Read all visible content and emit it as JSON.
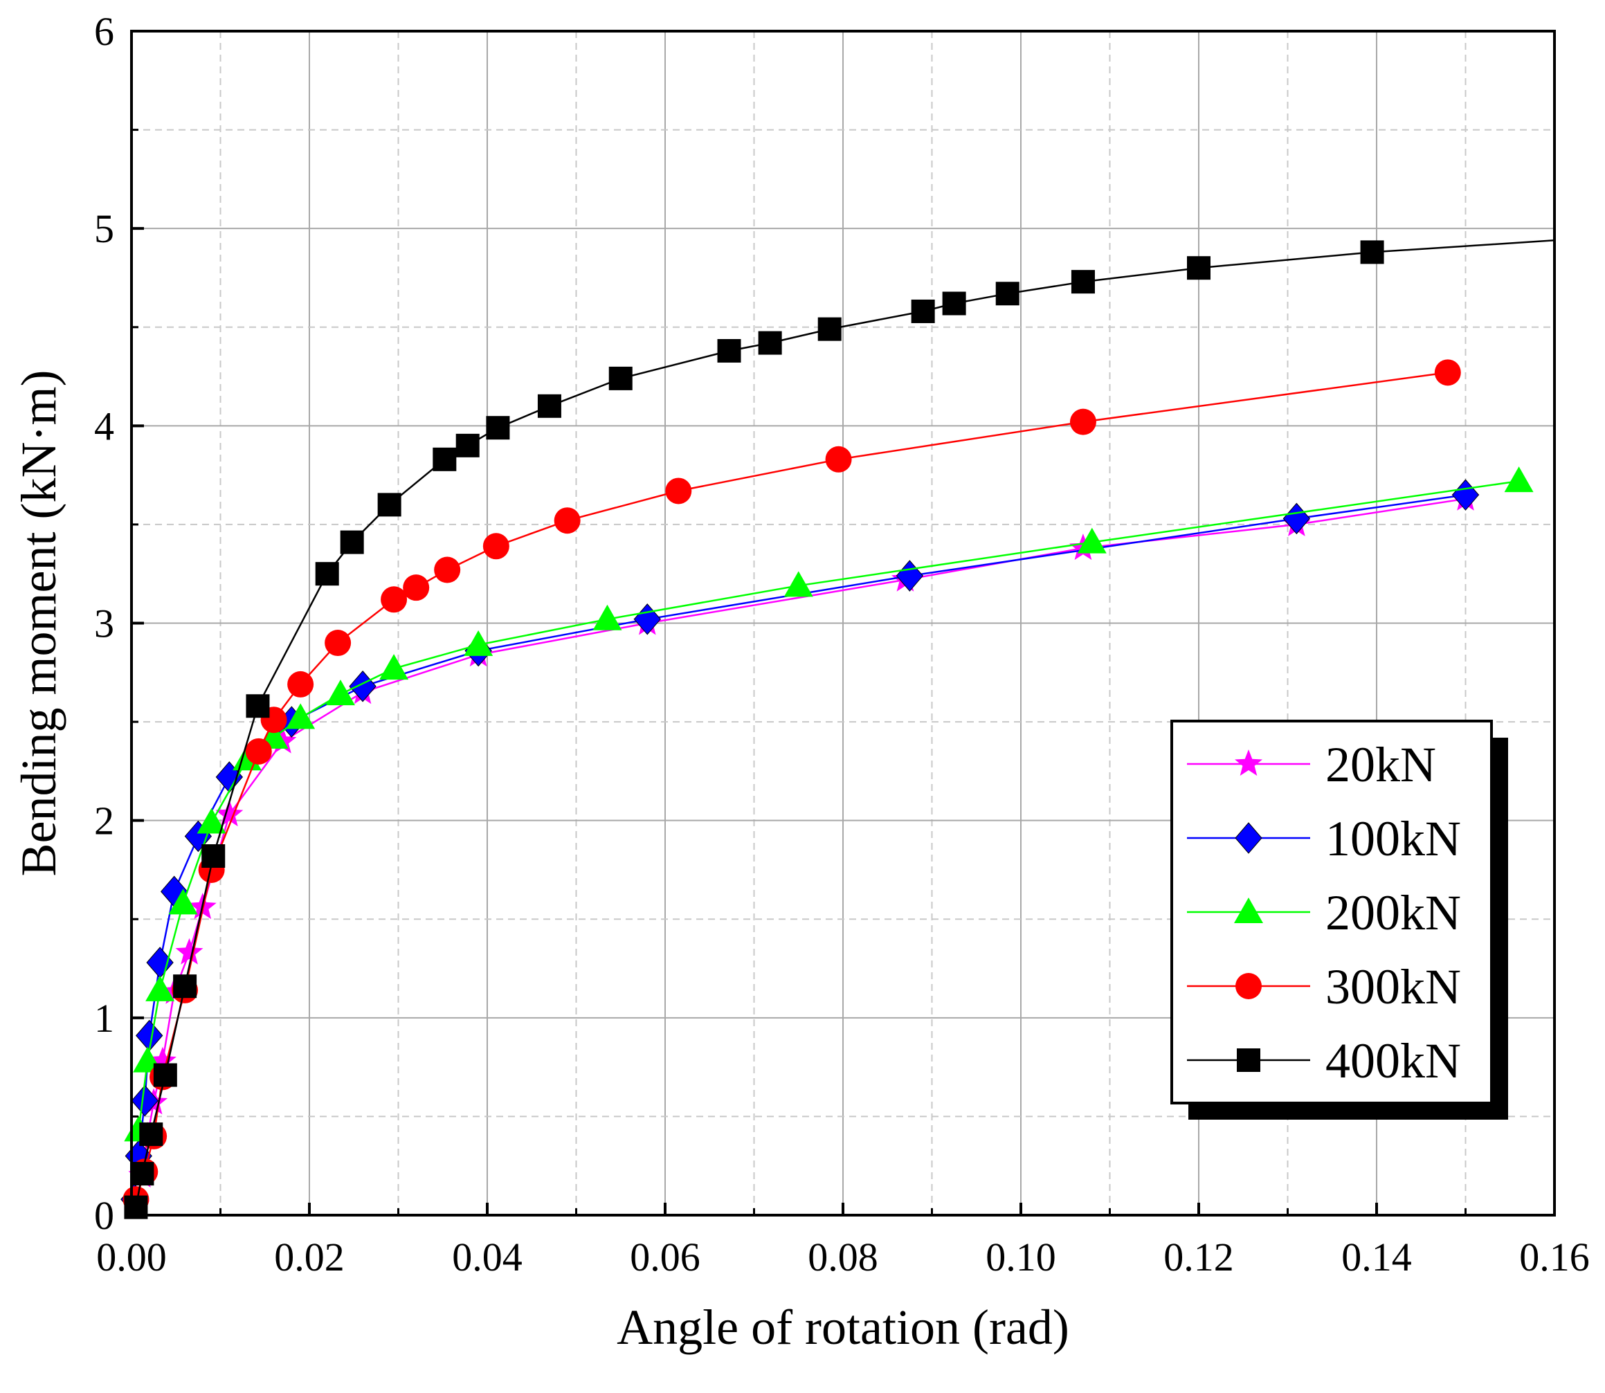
{
  "chart_data": {
    "type": "line",
    "title": "",
    "xlabel": "Angle of rotation (rad)",
    "ylabel": "Bending moment (kN·m)",
    "xlim": [
      0,
      0.16
    ],
    "ylim": [
      0,
      6
    ],
    "x_ticks": [
      "0.00",
      "0.02",
      "0.04",
      "0.06",
      "0.08",
      "0.10",
      "0.12",
      "0.14",
      "0.16"
    ],
    "y_ticks": [
      "0",
      "1",
      "2",
      "3",
      "4",
      "5",
      "6"
    ],
    "x_tick_values": [
      0,
      0.02,
      0.04,
      0.06,
      0.08,
      0.1,
      0.12,
      0.14,
      0.16
    ],
    "y_tick_values": [
      0,
      1,
      2,
      3,
      4,
      5,
      6
    ],
    "grid": true,
    "legend_position": "lower-right",
    "series": [
      {
        "name": "20kN",
        "color": "#ff00ff",
        "marker": "star",
        "x": [
          0.0005,
          0.0012,
          0.0018,
          0.0025,
          0.0035,
          0.0048,
          0.0065,
          0.008,
          0.011,
          0.017,
          0.026,
          0.039,
          0.058,
          0.087,
          0.107,
          0.131,
          0.15
        ],
        "y": [
          0.05,
          0.2,
          0.4,
          0.57,
          0.78,
          1.13,
          1.33,
          1.56,
          2.03,
          2.4,
          2.65,
          2.84,
          3.0,
          3.22,
          3.38,
          3.5,
          3.63
        ]
      },
      {
        "name": "100kN",
        "color": "#0000ff",
        "marker": "diamond",
        "x": [
          0.0003,
          0.0008,
          0.0015,
          0.002,
          0.0032,
          0.0048,
          0.0075,
          0.011,
          0.018,
          0.026,
          0.039,
          0.058,
          0.0875,
          0.131,
          0.15
        ],
        "y": [
          0.08,
          0.3,
          0.58,
          0.91,
          1.28,
          1.64,
          1.92,
          2.22,
          2.5,
          2.68,
          2.86,
          3.02,
          3.24,
          3.53,
          3.65
        ]
      },
      {
        "name": "200kN",
        "color": "#00ff00",
        "marker": "triangle",
        "x": [
          0.0008,
          0.0018,
          0.0032,
          0.0058,
          0.009,
          0.013,
          0.016,
          0.019,
          0.0235,
          0.0295,
          0.039,
          0.0535,
          0.075,
          0.108,
          0.156
        ],
        "y": [
          0.43,
          0.78,
          1.14,
          1.58,
          1.99,
          2.31,
          2.42,
          2.52,
          2.64,
          2.77,
          2.89,
          3.02,
          3.19,
          3.41,
          3.72
        ]
      },
      {
        "name": "300kN",
        "color": "#ff0000",
        "marker": "circle",
        "x": [
          0.0005,
          0.0015,
          0.0025,
          0.0035,
          0.006,
          0.009,
          0.0143,
          0.016,
          0.019,
          0.0232,
          0.0295,
          0.032,
          0.0355,
          0.041,
          0.049,
          0.0615,
          0.0795,
          0.107,
          0.148
        ],
        "y": [
          0.08,
          0.22,
          0.4,
          0.7,
          1.14,
          1.75,
          2.35,
          2.51,
          2.69,
          2.9,
          3.12,
          3.18,
          3.27,
          3.39,
          3.52,
          3.67,
          3.83,
          4.02,
          4.27
        ]
      },
      {
        "name": "400kN",
        "color": "#000000",
        "marker": "square",
        "x": [
          0.0005,
          0.0012,
          0.0022,
          0.0038,
          0.006,
          0.0092,
          0.0142,
          0.022,
          0.0248,
          0.029,
          0.0352,
          0.0378,
          0.0412,
          0.047,
          0.055,
          0.0672,
          0.0718,
          0.0785,
          0.089,
          0.0925,
          0.0985,
          0.107,
          0.12,
          0.1395,
          0.16
        ],
        "y": [
          0.04,
          0.21,
          0.41,
          0.71,
          1.16,
          1.82,
          2.58,
          3.25,
          3.41,
          3.6,
          3.83,
          3.9,
          3.99,
          4.1,
          4.24,
          4.38,
          4.42,
          4.49,
          4.58,
          4.62,
          4.67,
          4.73,
          4.8,
          4.88,
          4.94
        ]
      }
    ]
  }
}
